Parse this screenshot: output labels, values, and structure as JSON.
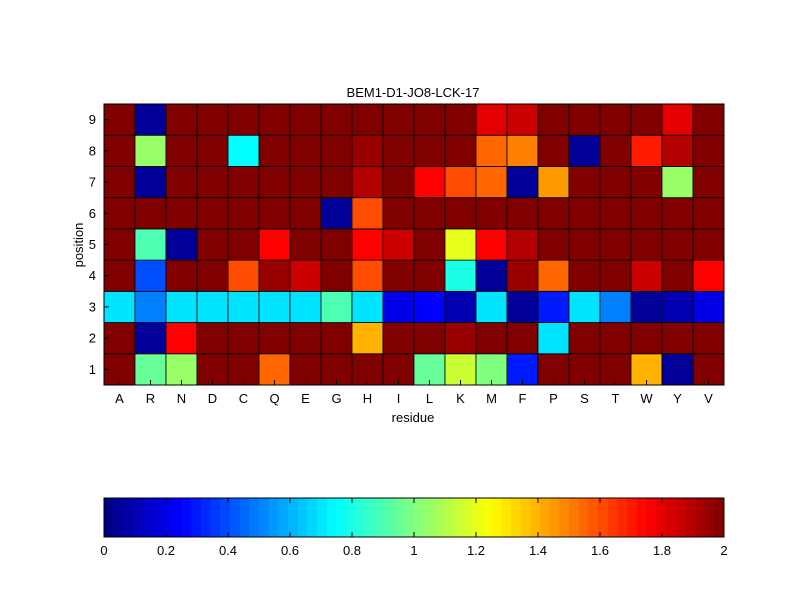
{
  "chart_data": [
    {
      "type": "heatmap",
      "title": "BEM1-D1-JO8-LCK-17",
      "xlabel": "residue",
      "ylabel": "position",
      "x_categories": [
        "A",
        "R",
        "N",
        "D",
        "C",
        "Q",
        "E",
        "G",
        "H",
        "I",
        "L",
        "K",
        "M",
        "F",
        "P",
        "S",
        "T",
        "W",
        "Y",
        "V"
      ],
      "y_categories": [
        "1",
        "2",
        "3",
        "4",
        "5",
        "6",
        "7",
        "8",
        "9"
      ],
      "zlim": [
        0,
        2
      ],
      "colormap": "jet",
      "grid": true,
      "values": [
        [
          2.0,
          0.95,
          1.05,
          2.0,
          2.0,
          1.55,
          2.0,
          2.0,
          2.0,
          2.0,
          0.95,
          1.15,
          1.0,
          0.3,
          2.0,
          2.0,
          2.0,
          1.4,
          0.05,
          2.0
        ],
        [
          2.0,
          0.05,
          1.75,
          2.0,
          2.0,
          2.0,
          2.0,
          2.0,
          1.4,
          2.0,
          2.0,
          1.95,
          2.0,
          2.0,
          0.7,
          2.0,
          2.0,
          2.0,
          2.0,
          2.0
        ],
        [
          0.7,
          0.5,
          0.7,
          0.7,
          0.7,
          0.7,
          0.7,
          0.9,
          0.7,
          0.2,
          0.25,
          0.1,
          0.7,
          0.05,
          0.3,
          0.7,
          0.5,
          0.05,
          0.1,
          0.2
        ],
        [
          2.0,
          0.4,
          2.0,
          2.0,
          1.6,
          1.95,
          1.85,
          2.0,
          1.6,
          2.0,
          2.0,
          0.8,
          0.05,
          1.95,
          1.55,
          2.0,
          2.0,
          1.85,
          2.0,
          1.75
        ],
        [
          2.0,
          0.9,
          0.05,
          2.0,
          2.0,
          1.75,
          2.0,
          2.0,
          1.75,
          1.85,
          2.0,
          1.2,
          1.75,
          1.9,
          2.0,
          2.0,
          2.0,
          2.0,
          2.0,
          2.0
        ],
        [
          2.0,
          2.0,
          2.0,
          2.0,
          2.0,
          2.0,
          2.0,
          0.05,
          1.6,
          2.0,
          2.0,
          2.0,
          2.0,
          2.0,
          2.0,
          2.0,
          2.0,
          2.0,
          2.0,
          2.0
        ],
        [
          2.0,
          0.05,
          2.0,
          2.0,
          2.0,
          2.0,
          2.0,
          2.0,
          1.9,
          2.0,
          1.75,
          1.6,
          1.55,
          0.05,
          1.45,
          2.0,
          2.0,
          2.0,
          1.05,
          2.0
        ],
        [
          2.0,
          1.05,
          2.0,
          2.0,
          0.75,
          2.0,
          2.0,
          2.0,
          1.95,
          2.0,
          2.0,
          2.0,
          1.55,
          1.5,
          2.0,
          0.05,
          2.0,
          1.7,
          1.9,
          2.0
        ],
        [
          2.0,
          0.05,
          2.0,
          2.0,
          2.0,
          2.0,
          2.0,
          2.0,
          2.0,
          2.0,
          2.0,
          2.0,
          1.8,
          1.85,
          2.0,
          2.0,
          2.0,
          2.0,
          1.8,
          2.0
        ]
      ],
      "colorbar": {
        "ticks": [
          0,
          0.2,
          0.4,
          0.6,
          0.8,
          1,
          1.2,
          1.4,
          1.6,
          1.8,
          2
        ],
        "tick_labels": [
          "0",
          "0.2",
          "0.4",
          "0.6",
          "0.8",
          "1",
          "1.2",
          "1.4",
          "1.6",
          "1.8",
          "2"
        ]
      }
    }
  ]
}
